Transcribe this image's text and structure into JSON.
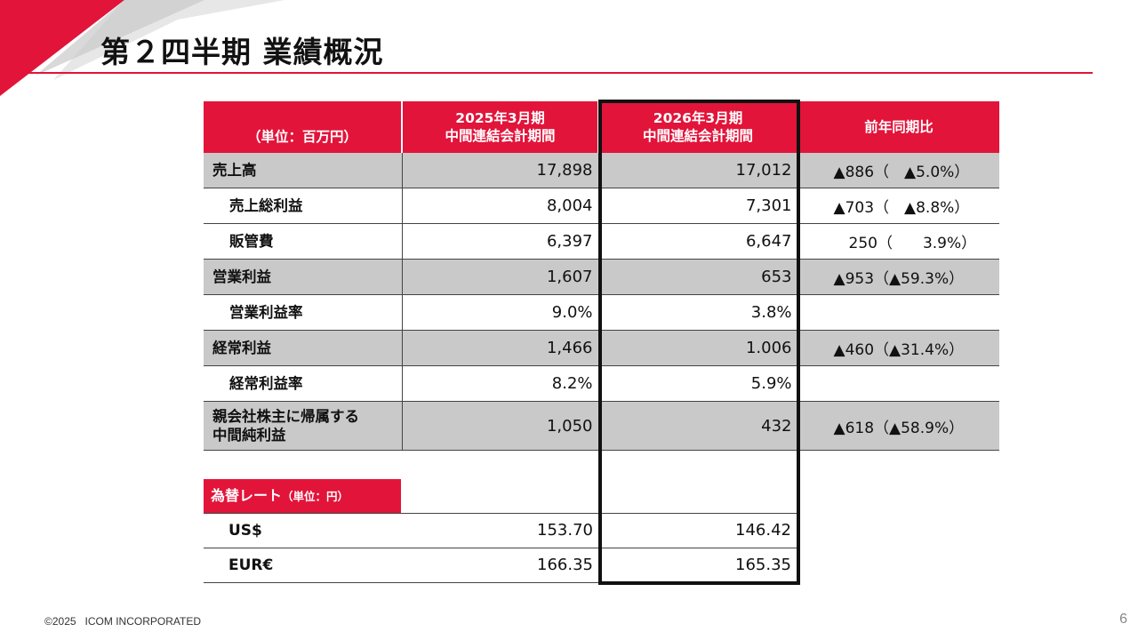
{
  "slide": {
    "title": "第２四半期 業績概況",
    "page_number": "6",
    "copyright": "©2025   ICOM INCORPORATED",
    "accent_color": "#e2143a"
  },
  "table": {
    "headers": {
      "unit": "（単位：百万円）",
      "prev_year": "2025年3月期",
      "prev_period": "中間連結会計期間",
      "curr_year": "2026年3月期",
      "curr_period": "中間連結会計期間",
      "comparison": "前年同期比"
    },
    "rows": [
      {
        "label": "売上高",
        "prev": "17,898",
        "curr": "17,012",
        "diff": "▲886（　▲5.0%）"
      },
      {
        "label": "売上総利益",
        "prev": "8,004",
        "curr": "7,301",
        "diff": "▲703（　▲8.8%）"
      },
      {
        "label": "販管費",
        "prev": "6,397",
        "curr": "6,647",
        "diff": "　250（　　3.9%）"
      },
      {
        "label": "営業利益",
        "prev": "1,607",
        "curr": "653",
        "diff": "▲953（▲59.3%）"
      },
      {
        "label": "営業利益率",
        "prev": "9.0%",
        "curr": "3.8%",
        "diff": ""
      },
      {
        "label": "経常利益",
        "prev": "1,466",
        "curr": "1.006",
        "diff": "▲460（▲31.4%）"
      },
      {
        "label": "経常利益率",
        "prev": "8.2%",
        "curr": "5.9%",
        "diff": ""
      },
      {
        "label_line1": "親会社株主に帰属する",
        "label_line2": "中間純利益",
        "prev": "1,050",
        "curr": "432",
        "diff": "▲618（▲58.9%）"
      }
    ]
  },
  "fx": {
    "header": "為替レート",
    "unit": "（単位：円）",
    "rows": [
      {
        "label": "US$",
        "prev": "153.70",
        "curr": "146.42"
      },
      {
        "label": "EUR€",
        "prev": "166.35",
        "curr": "165.35"
      }
    ]
  }
}
